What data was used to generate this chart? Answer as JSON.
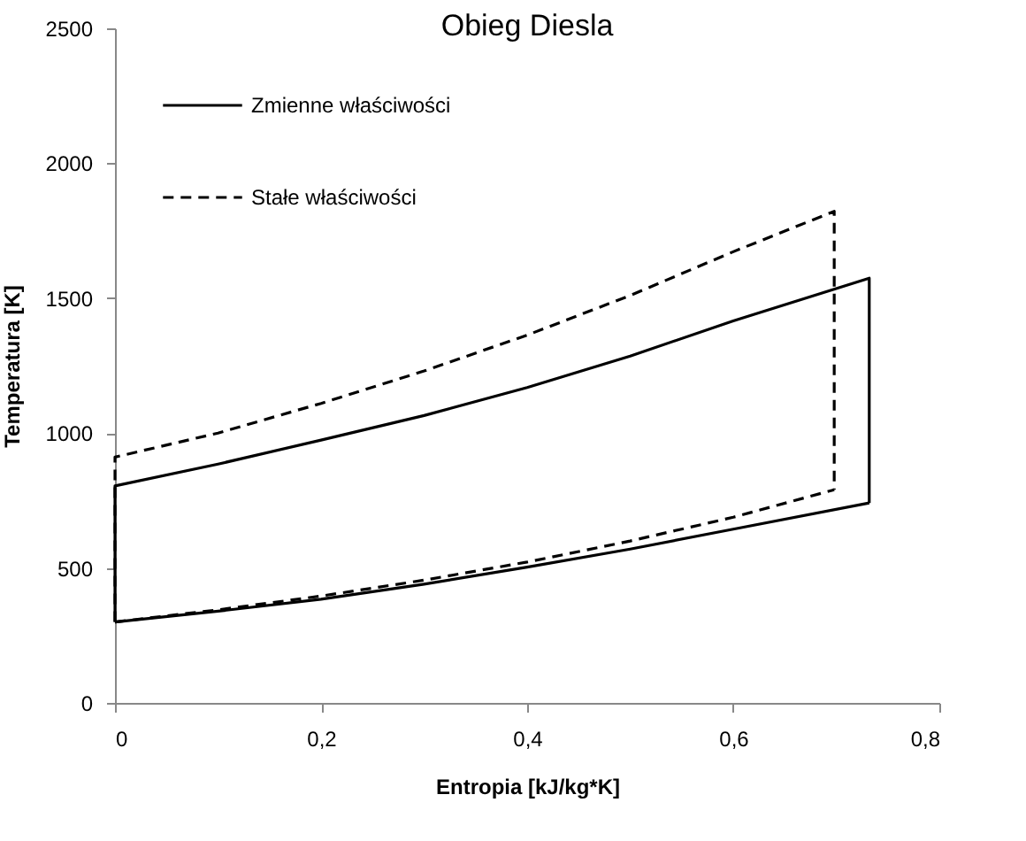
{
  "chart_data": {
    "type": "line",
    "title": "Obieg Diesla",
    "xlabel": "Entropia [kJ/kg*K]",
    "ylabel": "Temperatura [K]",
    "xlim": [
      0,
      0.8
    ],
    "xticks": [
      0,
      {
        "value": 0.2,
        "label": "0,2"
      },
      {
        "value": 0.4,
        "label": "0,4"
      },
      {
        "value": 0.6,
        "label": "0,6"
      },
      {
        "value": 0.8,
        "label": "0,8"
      }
    ],
    "ylim": [
      0,
      2500
    ],
    "yticks": [
      0,
      500,
      1000,
      1500,
      2000,
      2500
    ],
    "grid": false,
    "legend": "top left",
    "marker": "none",
    "series": [
      {
        "name": "Zmienne właściwości",
        "color": "#000000",
        "line_style": "solid",
        "x": [
          0,
          0,
          0.1,
          0.2,
          0.3,
          0.4,
          0.5,
          0.6,
          0.732,
          0.732
        ],
        "values": [
          300,
          804,
          885,
          974,
          1065,
          1169,
          1285,
          1416,
          1574,
          741
        ]
      },
      {
        "color": "#000000",
        "line_style": "solid",
        "x": [
          0,
          0.1,
          0.2,
          0.3,
          0.4,
          0.5,
          0.6,
          0.732
        ],
        "values": [
          300,
          340,
          384,
          440,
          503,
          570,
          644,
          741
        ]
      },
      {
        "name": "Stałe właściwości",
        "color": "#000000",
        "line_style": "dashed",
        "x": [
          0,
          0,
          0.1,
          0.2,
          0.3,
          0.4,
          0.5,
          0.6,
          0.698,
          0.698
        ],
        "values": [
          300,
          911,
          1000,
          1110,
          1230,
          1363,
          1510,
          1672,
          1822,
          790
        ]
      },
      {
        "color": "#000000",
        "line_style": "dashed",
        "x": [
          0,
          0.1,
          0.2,
          0.3,
          0.4,
          0.5,
          0.6,
          0.698
        ],
        "values": [
          300,
          345,
          396,
          455,
          522,
          600,
          688,
          790
        ]
      }
    ]
  }
}
